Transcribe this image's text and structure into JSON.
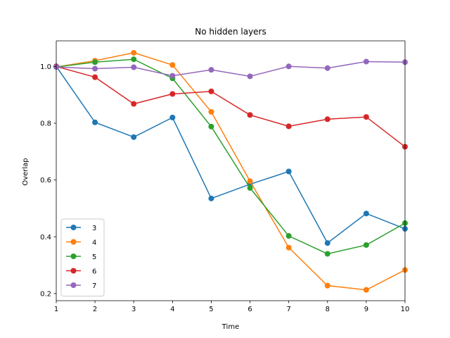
{
  "chart_data": {
    "type": "line",
    "title": "No hidden layers",
    "xlabel": "Time",
    "ylabel": "Overlap",
    "x": [
      1,
      2,
      3,
      4,
      5,
      6,
      7,
      8,
      9,
      10
    ],
    "xlim": [
      1,
      10
    ],
    "ylim": [
      0.175,
      1.09
    ],
    "xticks": [
      "1",
      "2",
      "3",
      "4",
      "5",
      "6",
      "7",
      "8",
      "9",
      "10"
    ],
    "yticks": [
      "0.2",
      "0.4",
      "0.6",
      "0.8",
      "1.0"
    ],
    "grid": false,
    "legend_position": "lower-left",
    "series": [
      {
        "name": "3",
        "color": "#1f77b4",
        "values": [
          1.0,
          0.803,
          0.751,
          0.82,
          0.535,
          0.585,
          0.63,
          0.378,
          0.482,
          0.428
        ]
      },
      {
        "name": "4",
        "color": "#ff7f0e",
        "values": [
          0.998,
          1.02,
          1.048,
          1.005,
          0.84,
          0.596,
          0.362,
          0.228,
          0.213,
          0.283
        ]
      },
      {
        "name": "5",
        "color": "#2ca02c",
        "values": [
          0.998,
          1.015,
          1.025,
          0.958,
          0.788,
          0.572,
          0.403,
          0.34,
          0.371,
          0.448
        ]
      },
      {
        "name": "6",
        "color": "#d62728",
        "values": [
          1.0,
          0.962,
          0.868,
          0.903,
          0.912,
          0.829,
          0.789,
          0.814,
          0.822,
          0.717
        ]
      },
      {
        "name": "7",
        "color": "#9467bd",
        "values": [
          0.998,
          0.992,
          0.997,
          0.967,
          0.988,
          0.965,
          1.0,
          0.994,
          1.017,
          1.015
        ]
      }
    ]
  }
}
